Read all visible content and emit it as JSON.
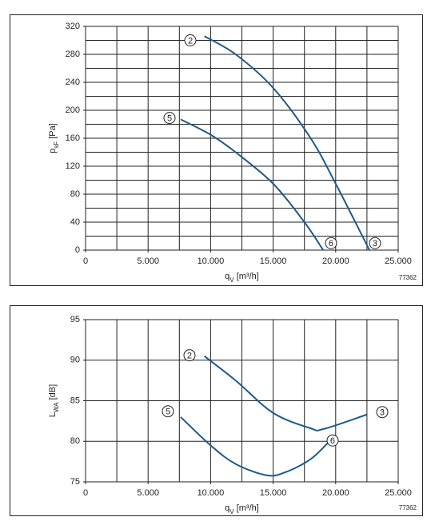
{
  "chart_data": [
    {
      "type": "line",
      "x_label": {
        "main": "q",
        "sub": "V",
        "rest": " [m³/h]"
      },
      "y_label": {
        "main": "p",
        "sub": "sF",
        "rest": " [Pa]"
      },
      "code": "77362",
      "xlim": [
        0,
        25000
      ],
      "xticks": [
        0,
        {
          "value": 5000,
          "label": "5.000"
        },
        {
          "value": 10000,
          "label": "10.000"
        },
        {
          "value": 15000,
          "label": "15.000"
        },
        {
          "value": 20000,
          "label": "20.000"
        },
        {
          "value": 25000,
          "label": "25.000"
        }
      ],
      "xgrid": [
        0,
        2500,
        5000,
        7500,
        10000,
        12500,
        15000,
        17500,
        20000,
        22500,
        25000
      ],
      "ylim": [
        0,
        320
      ],
      "yticks": [
        0,
        40,
        80,
        120,
        160,
        200,
        240,
        280,
        320
      ],
      "ygrid": [
        0,
        20,
        40,
        60,
        80,
        100,
        120,
        140,
        160,
        180,
        200,
        220,
        240,
        260,
        280,
        300,
        320
      ],
      "series": [
        {
          "color": "#1f5a8a",
          "x": [
            9500,
            12000,
            15000,
            18000,
            20000,
            22700
          ],
          "values": [
            306,
            280,
            232,
            160,
            95,
            0
          ]
        },
        {
          "color": "#1f5a8a",
          "x": [
            7600,
            10000,
            12000,
            15000,
            17500,
            19000
          ],
          "values": [
            187,
            165,
            140,
            95,
            40,
            0
          ]
        }
      ],
      "annotations": [
        {
          "text": "2",
          "x": 8376,
          "y": 300
        },
        {
          "text": "5",
          "x": 6714,
          "y": 189
        },
        {
          "text": "6",
          "x": 19629,
          "y": 10
        },
        {
          "text": "3",
          "x": 23145,
          "y": 10
        }
      ]
    },
    {
      "type": "line",
      "x_label": {
        "main": "q",
        "sub": "V",
        "rest": " [m³/h]"
      },
      "y_label": {
        "main": "L",
        "sub": "WA",
        "rest": " [dB]"
      },
      "code": "77362",
      "xlim": [
        0,
        25000
      ],
      "xticks": [
        0,
        {
          "value": 5000,
          "label": "5.000"
        },
        {
          "value": 10000,
          "label": "10.000"
        },
        {
          "value": 15000,
          "label": "15.000"
        },
        {
          "value": 20000,
          "label": "20.000"
        },
        {
          "value": 25000,
          "label": "25.000"
        }
      ],
      "xgrid": [
        0,
        2500,
        5000,
        7500,
        10000,
        12500,
        15000,
        17500,
        20000,
        22500,
        25000
      ],
      "ylim": [
        75,
        95
      ],
      "yticks": [
        75,
        80,
        85,
        90,
        95
      ],
      "ygrid": [
        75,
        80,
        85,
        90,
        95
      ],
      "series": [
        {
          "color": "#1f5a8a",
          "x": [
            9500,
            12000,
            15000,
            18000,
            19000,
            22500
          ],
          "values": [
            90.5,
            87.5,
            83.5,
            81.6,
            81.5,
            83.3
          ]
        },
        {
          "color": "#1f5a8a",
          "x": [
            7600,
            10000,
            12000,
            14500,
            16000,
            18000,
            19500
          ],
          "values": [
            83,
            79.5,
            77.2,
            75.8,
            76.2,
            77.8,
            80
          ]
        }
      ],
      "annotations": [
        {
          "text": "2",
          "x": 8312,
          "y": 90.6
        },
        {
          "text": "5",
          "x": 6586,
          "y": 83.7
        },
        {
          "text": "3",
          "x": 23721,
          "y": 83.6
        },
        {
          "text": "6",
          "x": 19757,
          "y": 80.1
        }
      ]
    }
  ]
}
